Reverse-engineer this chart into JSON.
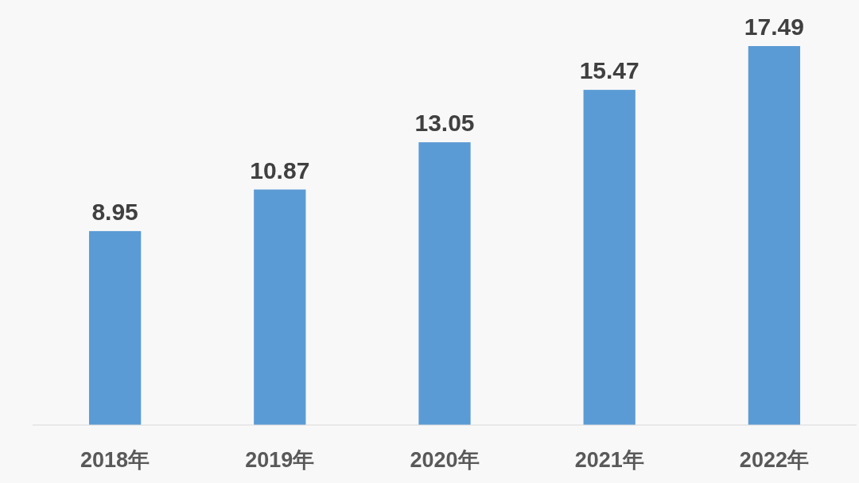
{
  "chart_data": {
    "type": "bar",
    "categories": [
      "2018年",
      "2019年",
      "2020年",
      "2021年",
      "2022年"
    ],
    "values": [
      8.95,
      10.87,
      13.05,
      15.47,
      17.49
    ],
    "color": "#5b9bd5",
    "data_labels": true
  }
}
